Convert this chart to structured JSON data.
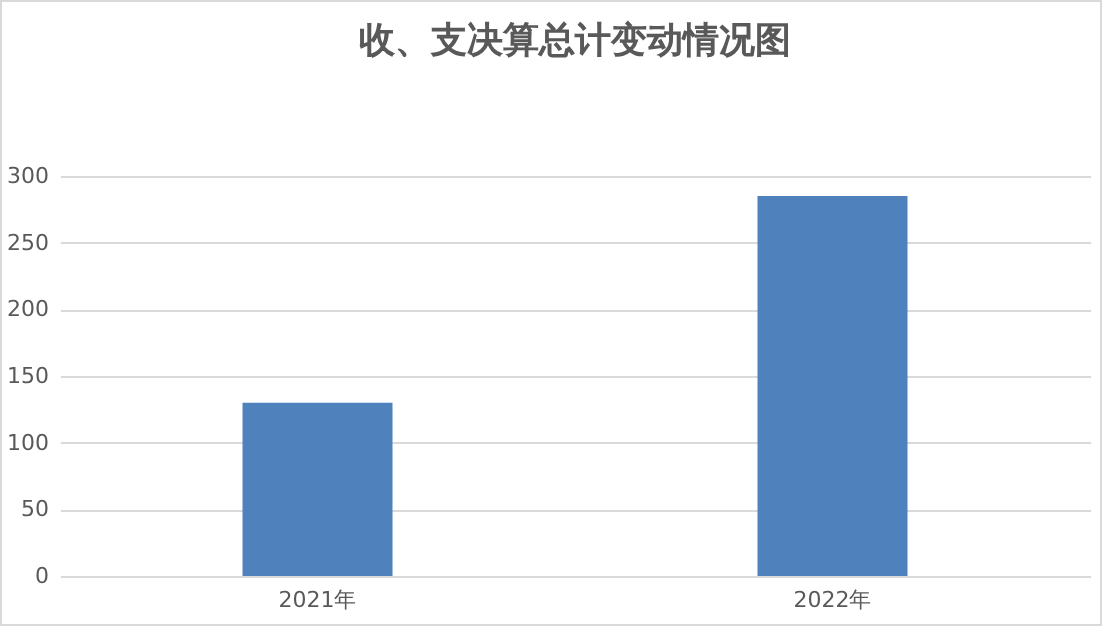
{
  "chart_data": {
    "type": "bar",
    "title": "收、支决算总计变动情况图",
    "categories": [
      "2021年",
      "2022年"
    ],
    "values": [
      130,
      285
    ],
    "color": "#4f81bd",
    "ylim": [
      0,
      300
    ],
    "yticks": [
      0,
      50,
      100,
      150,
      200,
      250,
      300
    ],
    "grid": "y"
  }
}
